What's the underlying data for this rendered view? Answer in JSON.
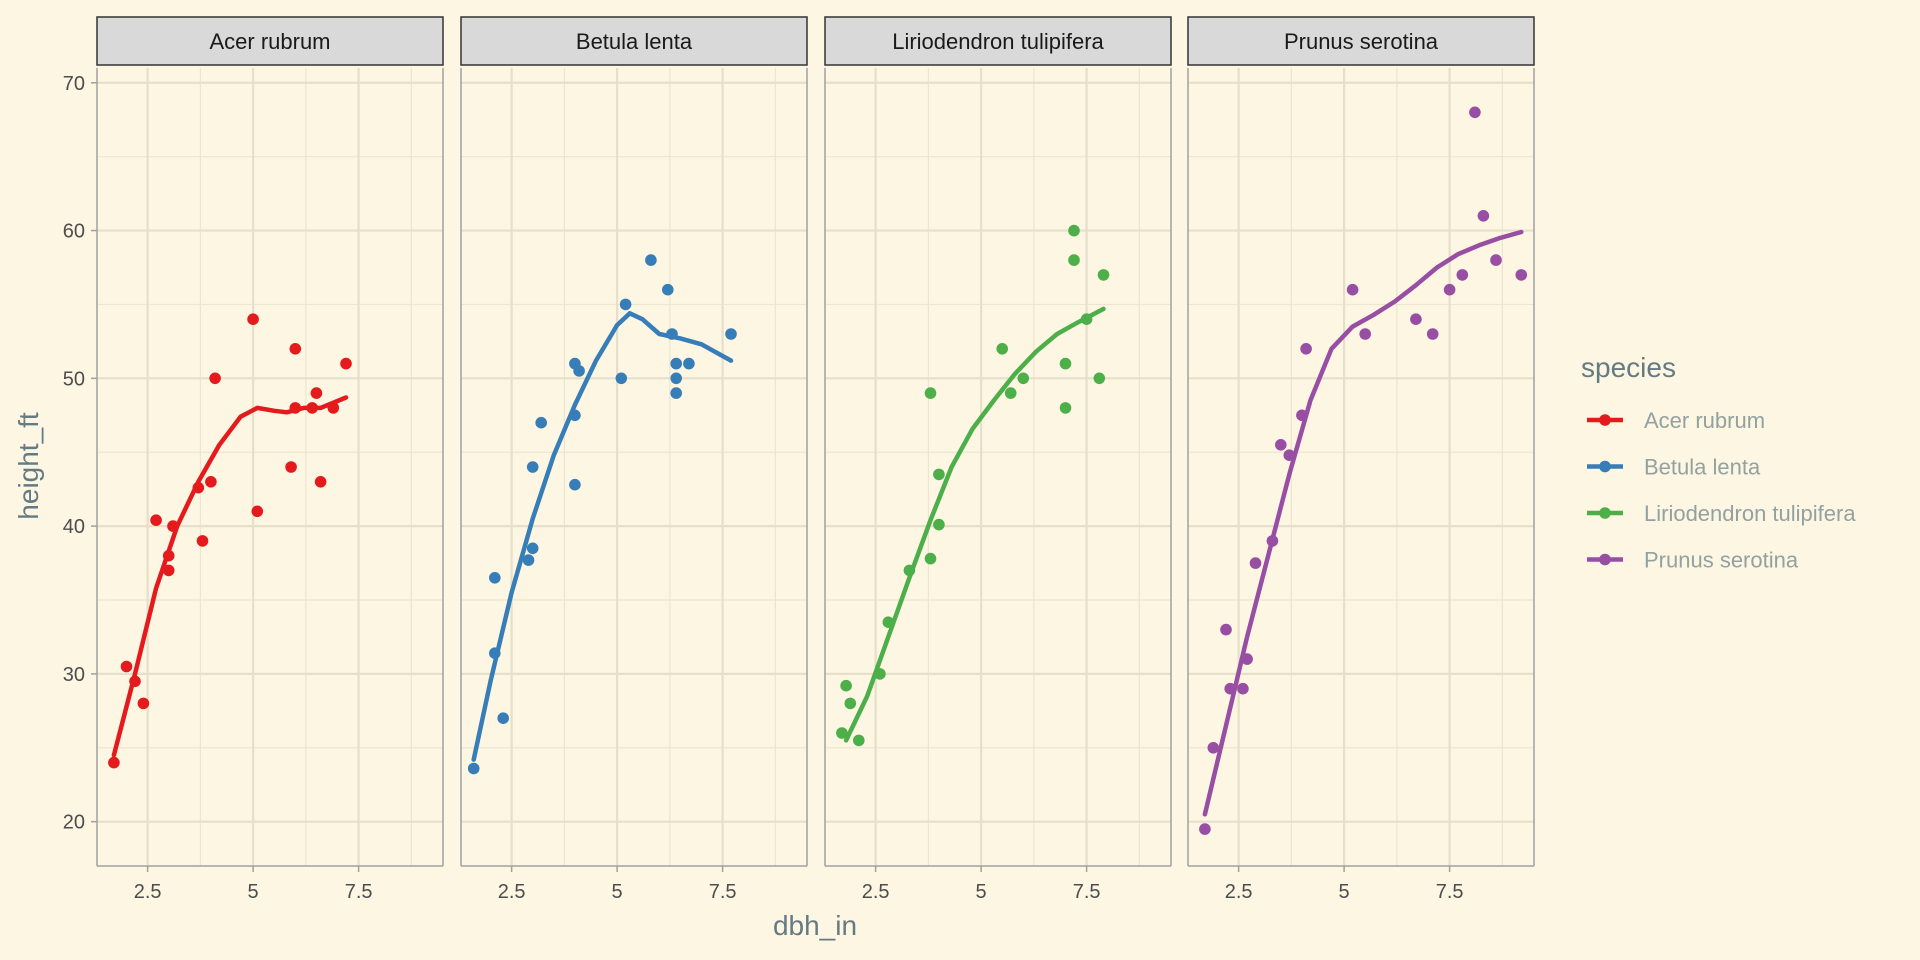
{
  "chart_data": {
    "type": "scatter",
    "facet_by": "species",
    "xlabel": "dbh_in",
    "ylabel": "height_ft",
    "xlim": [
      1.3,
      9.5
    ],
    "ylim": [
      17,
      71
    ],
    "x_ticks": [
      2.5,
      5.0,
      7.5
    ],
    "y_ticks": [
      20,
      30,
      40,
      50,
      60,
      70
    ],
    "grid": true,
    "smooth": "loess",
    "legend": {
      "title": "species",
      "position": "right"
    },
    "series": [
      {
        "name": "Acer rubrum",
        "color": "#e41a1c",
        "points": [
          [
            1.7,
            24
          ],
          [
            2.0,
            30.5
          ],
          [
            2.2,
            29.5
          ],
          [
            2.4,
            28
          ],
          [
            2.7,
            40.4
          ],
          [
            3.0,
            37
          ],
          [
            3.0,
            38
          ],
          [
            3.1,
            40
          ],
          [
            3.7,
            42.6
          ],
          [
            3.8,
            39
          ],
          [
            4.0,
            43
          ],
          [
            4.1,
            50
          ],
          [
            5.0,
            54
          ],
          [
            5.1,
            41
          ],
          [
            5.9,
            44
          ],
          [
            6.0,
            48
          ],
          [
            6.0,
            52
          ],
          [
            6.4,
            48
          ],
          [
            6.5,
            49
          ],
          [
            6.6,
            43
          ],
          [
            6.9,
            48
          ],
          [
            7.2,
            51
          ]
        ],
        "smooth": [
          [
            1.7,
            24.5
          ],
          [
            2.2,
            30
          ],
          [
            2.7,
            35.8
          ],
          [
            3.2,
            40
          ],
          [
            3.7,
            43
          ],
          [
            4.2,
            45.5
          ],
          [
            4.7,
            47.4
          ],
          [
            5.1,
            48
          ],
          [
            5.5,
            47.8
          ],
          [
            5.8,
            47.7
          ],
          [
            6.2,
            48
          ],
          [
            6.6,
            48
          ],
          [
            7.2,
            48.7
          ]
        ]
      },
      {
        "name": "Betula lenta",
        "color": "#377eb8",
        "points": [
          [
            1.6,
            23.6
          ],
          [
            2.1,
            31.4
          ],
          [
            2.1,
            36.5
          ],
          [
            2.3,
            27
          ],
          [
            2.9,
            37.7
          ],
          [
            3.0,
            38.5
          ],
          [
            3.0,
            44
          ],
          [
            3.2,
            47
          ],
          [
            4.0,
            51
          ],
          [
            4.0,
            47.5
          ],
          [
            4.0,
            42.8
          ],
          [
            4.1,
            50.5
          ],
          [
            5.1,
            50
          ],
          [
            5.2,
            55
          ],
          [
            5.8,
            58
          ],
          [
            6.2,
            56
          ],
          [
            6.3,
            53
          ],
          [
            6.4,
            51
          ],
          [
            6.4,
            50
          ],
          [
            6.4,
            49
          ],
          [
            6.7,
            51
          ],
          [
            7.7,
            53
          ]
        ],
        "smooth": [
          [
            1.6,
            24.2
          ],
          [
            2.0,
            29.5
          ],
          [
            2.5,
            35.5
          ],
          [
            3.0,
            40.5
          ],
          [
            3.5,
            44.8
          ],
          [
            4.0,
            48.2
          ],
          [
            4.5,
            51.2
          ],
          [
            5.0,
            53.6
          ],
          [
            5.3,
            54.4
          ],
          [
            5.6,
            54
          ],
          [
            6.0,
            53
          ],
          [
            6.5,
            52.7
          ],
          [
            7.0,
            52.3
          ],
          [
            7.7,
            51.2
          ]
        ]
      },
      {
        "name": "Liriodendron tulipifera",
        "color": "#4daf4a",
        "points": [
          [
            1.7,
            26
          ],
          [
            1.8,
            29.2
          ],
          [
            1.9,
            28
          ],
          [
            2.1,
            25.5
          ],
          [
            2.6,
            30
          ],
          [
            2.8,
            33.5
          ],
          [
            3.3,
            37
          ],
          [
            3.8,
            37.8
          ],
          [
            3.8,
            49
          ],
          [
            4.0,
            43.5
          ],
          [
            4.0,
            40.1
          ],
          [
            5.5,
            52
          ],
          [
            5.7,
            49
          ],
          [
            6.0,
            50
          ],
          [
            7.0,
            48
          ],
          [
            7.0,
            51
          ],
          [
            7.2,
            58
          ],
          [
            7.2,
            60
          ],
          [
            7.5,
            54
          ],
          [
            7.8,
            50
          ],
          [
            7.9,
            57
          ]
        ],
        "smooth": [
          [
            1.8,
            25.5
          ],
          [
            2.3,
            28.5
          ],
          [
            2.8,
            32.5
          ],
          [
            3.3,
            36.5
          ],
          [
            3.8,
            40.4
          ],
          [
            4.3,
            44
          ],
          [
            4.8,
            46.6
          ],
          [
            5.3,
            48.5
          ],
          [
            5.8,
            50.3
          ],
          [
            6.3,
            51.8
          ],
          [
            6.8,
            53
          ],
          [
            7.3,
            53.8
          ],
          [
            7.9,
            54.7
          ]
        ]
      },
      {
        "name": "Prunus serotina",
        "color": "#984ea3",
        "points": [
          [
            1.7,
            19.5
          ],
          [
            1.9,
            25
          ],
          [
            2.2,
            33
          ],
          [
            2.3,
            29
          ],
          [
            2.6,
            29
          ],
          [
            2.7,
            31
          ],
          [
            2.9,
            37.5
          ],
          [
            3.3,
            39
          ],
          [
            3.5,
            45.5
          ],
          [
            3.7,
            44.8
          ],
          [
            4.0,
            47.5
          ],
          [
            4.1,
            52
          ],
          [
            5.2,
            56
          ],
          [
            5.5,
            53
          ],
          [
            6.7,
            54
          ],
          [
            7.1,
            53
          ],
          [
            7.5,
            56
          ],
          [
            7.8,
            57
          ],
          [
            8.1,
            68
          ],
          [
            8.3,
            61
          ],
          [
            8.6,
            58
          ],
          [
            9.2,
            57
          ]
        ],
        "smooth": [
          [
            1.7,
            20.5
          ],
          [
            2.2,
            26.5
          ],
          [
            2.7,
            32.5
          ],
          [
            3.2,
            38
          ],
          [
            3.7,
            43.5
          ],
          [
            4.2,
            48.5
          ],
          [
            4.7,
            52
          ],
          [
            5.2,
            53.5
          ],
          [
            5.7,
            54.3
          ],
          [
            6.2,
            55.2
          ],
          [
            6.7,
            56.3
          ],
          [
            7.2,
            57.5
          ],
          [
            7.7,
            58.4
          ],
          [
            8.2,
            59
          ],
          [
            8.7,
            59.5
          ],
          [
            9.2,
            59.9
          ]
        ]
      }
    ]
  }
}
